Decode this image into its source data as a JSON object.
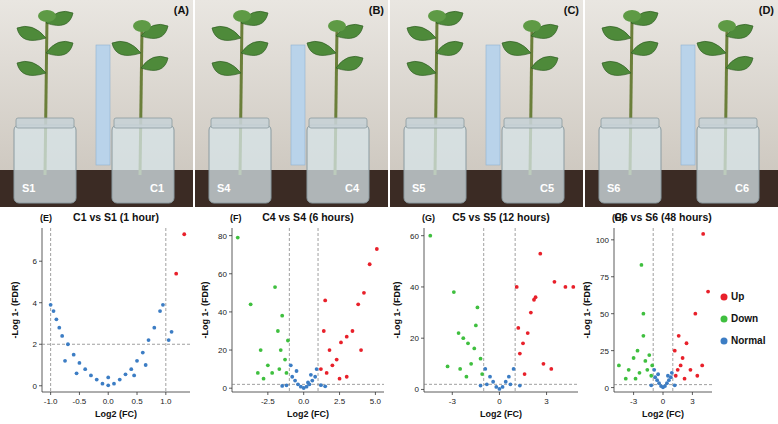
{
  "photos": [
    {
      "label": "(A)",
      "left": "S1",
      "right": "C1"
    },
    {
      "label": "(B)",
      "left": "S4",
      "right": "C4"
    },
    {
      "label": "(C)",
      "left": "S5",
      "right": "C5"
    },
    {
      "label": "(D)",
      "left": "S6",
      "right": "C6"
    }
  ],
  "chart_data": [
    {
      "type": "scatter",
      "title": "C1 vs S1 (1 hour)",
      "panel": "(E)",
      "xlabel": "Log2 (FC)",
      "ylabel": "-Log 1- (FDR)",
      "xlim": [
        -1.15,
        1.42
      ],
      "ylim": [
        -0.3,
        7.6
      ],
      "xticks": [
        {
          "value": -1,
          "label": "-1.0"
        },
        -0.5,
        {
          "value": 0,
          "label": "0.0"
        },
        0.5,
        {
          "value": 1,
          "label": "1.0"
        }
      ],
      "yticks": [
        0,
        2,
        4,
        6
      ],
      "reference_lines": {
        "x": [
          -1,
          1
        ],
        "y": 2
      },
      "series": [
        {
          "color": "#e8202a",
          "x": [
            1.32,
            1.18
          ],
          "values": [
            7.3,
            5.4
          ]
        },
        {
          "color": "#3fbf3f",
          "x": [],
          "values": []
        },
        {
          "color": "#3c7dc4",
          "x": [
            -1.0,
            -0.95,
            -0.9,
            -0.85,
            -0.8,
            -0.7,
            -0.6,
            -0.5,
            -0.4,
            -0.3,
            -0.2,
            -0.1,
            0,
            0.1,
            0.2,
            0.3,
            0.4,
            0.5,
            0.6,
            0.7,
            0.8,
            0.9,
            0.95,
            1.05,
            1.1,
            -0.55,
            0.45,
            -0.75,
            0.65,
            0.0
          ],
          "values": [
            3.9,
            3.6,
            3.2,
            2.8,
            2.4,
            2.0,
            1.5,
            1.1,
            0.8,
            0.5,
            0.3,
            0.1,
            0.02,
            0.1,
            0.3,
            0.55,
            0.8,
            1.2,
            1.6,
            2.2,
            2.8,
            3.6,
            3.9,
            2.2,
            2.6,
            0.6,
            0.5,
            1.2,
            1.0,
            0.4
          ]
        }
      ]
    },
    {
      "type": "scatter",
      "title": "C4 vs S4 (6 hours)",
      "panel": "(F)",
      "xlabel": "Log2 (FC)",
      "ylabel": "-Log 1- (FDR)",
      "xlim": [
        -5,
        5.6
      ],
      "ylim": [
        -2,
        84
      ],
      "xticks": [
        -2.5,
        {
          "value": 0,
          "label": "0.0"
        },
        2.5,
        {
          "value": 5,
          "label": "5.0"
        }
      ],
      "yticks": [
        0,
        20,
        40,
        60,
        80
      ],
      "reference_lines": {
        "x": [
          -1,
          1
        ],
        "y": 2
      },
      "series": [
        {
          "color": "#e8202a",
          "x": [
            5.1,
            4.6,
            4.2,
            3.8,
            3.4,
            3.0,
            2.6,
            2.3,
            2.0,
            1.8,
            1.6,
            1.4,
            1.2,
            3.0,
            2.5,
            4.0,
            1.5
          ],
          "values": [
            73,
            65,
            50,
            44,
            30,
            27,
            24,
            15,
            12,
            20,
            8,
            30,
            10,
            6,
            5,
            20,
            46
          ]
        },
        {
          "color": "#3fbf3f",
          "x": [
            -4.6,
            -3.7,
            -3.0,
            -2.5,
            -2.0,
            -1.8,
            -1.6,
            -1.5,
            -1.3,
            -1.2,
            -2.2,
            -3.2,
            -1.1,
            -1.7,
            -2.8
          ],
          "values": [
            79,
            44,
            20,
            12,
            53,
            30,
            20,
            38,
            15,
            8,
            8,
            8,
            25,
            10,
            5
          ]
        },
        {
          "color": "#3c7dc4",
          "x": [
            -1.2,
            -0.8,
            -0.6,
            -0.4,
            -0.2,
            0,
            0.2,
            0.4,
            0.6,
            0.8,
            1.2,
            1.5,
            -1.5,
            -0.9,
            0.9,
            -0.5,
            0.5,
            0.3
          ],
          "values": [
            1.5,
            6,
            4,
            2,
            0.8,
            0.1,
            0.8,
            2,
            4,
            6,
            1.6,
            1.0,
            1.2,
            12,
            10,
            9,
            7,
            3
          ]
        }
      ]
    },
    {
      "type": "scatter",
      "title": "C5 vs S5 (12 hours)",
      "panel": "(G)",
      "xlabel": "Log2 (FC)",
      "ylabel": "-Log 1- (FDR)",
      "xlim": [
        -4.8,
        5
      ],
      "ylim": [
        -1,
        63
      ],
      "xticks": [
        -3,
        0,
        3
      ],
      "yticks": [
        0,
        20,
        40,
        60
      ],
      "reference_lines": {
        "x": [
          -1,
          1
        ],
        "y": 2
      },
      "series": [
        {
          "color": "#e8202a",
          "x": [
            4.7,
            4.2,
            3.5,
            2.6,
            2.3,
            2.0,
            1.8,
            1.5,
            1.3,
            1.2,
            2.8,
            3.3,
            1.6,
            2.2,
            1.1
          ],
          "values": [
            40,
            40,
            42,
            53,
            36,
            30,
            22,
            18,
            14,
            24,
            10,
            8,
            6,
            35,
            40
          ]
        },
        {
          "color": "#3fbf3f",
          "x": [
            -4.4,
            -2.9,
            -2.6,
            -2.3,
            -2.0,
            -1.6,
            -1.4,
            -1.2,
            -1.8,
            -2.5,
            -3.3,
            -1.1,
            -1.5,
            -2.1
          ],
          "values": [
            60,
            38,
            22,
            20,
            18,
            16,
            32,
            12,
            10,
            8,
            9,
            6,
            25,
            5
          ]
        },
        {
          "color": "#3c7dc4",
          "x": [
            -0.9,
            -0.6,
            -0.4,
            -0.2,
            0,
            0.2,
            0.4,
            0.6,
            0.9,
            -1.2,
            1.3,
            -0.8,
            0.7
          ],
          "values": [
            8,
            5,
            3,
            1,
            0.2,
            1,
            3,
            5,
            8,
            1.5,
            1.5,
            2,
            2
          ]
        }
      ]
    },
    {
      "type": "scatter",
      "title": "C6 vs S6 (48 hours)",
      "panel": "(H)",
      "xlabel": "Log2 (FC)",
      "ylabel": "-Log 1- (FDR)",
      "xlim": [
        -5,
        5
      ],
      "ylim": [
        -3,
        108
      ],
      "xticks": [
        -3,
        0,
        3
      ],
      "yticks": [
        0,
        25,
        50,
        75,
        100
      ],
      "reference_lines": {
        "x": [
          -1,
          1
        ],
        "y": 2
      },
      "legend": "right",
      "series": [
        {
          "name": "Up",
          "color": "#e8202a",
          "x": [
            4.1,
            4.6,
            3.3,
            2.4,
            2.0,
            1.8,
            1.5,
            1.3,
            2.8,
            3.5,
            1.2,
            2.2,
            4.0,
            1.6
          ],
          "values": [
            104,
            65,
            50,
            30,
            20,
            15,
            12,
            8,
            12,
            8,
            25,
            6,
            15,
            35
          ]
        },
        {
          "name": "Down",
          "color": "#3fbf3f",
          "x": [
            -2.2,
            -4.5,
            -3.5,
            -3.0,
            -2.6,
            -2.4,
            -2.0,
            -1.8,
            -1.6,
            -1.4,
            -1.2,
            -3.8,
            -2.8,
            -1.1,
            -2.0
          ],
          "values": [
            83,
            15,
            12,
            20,
            25,
            10,
            35,
            18,
            12,
            22,
            8,
            6,
            6,
            15,
            50
          ]
        },
        {
          "name": "Normal",
          "color": "#3c7dc4",
          "x": [
            -1.2,
            -0.8,
            -0.6,
            -0.4,
            -0.2,
            0,
            0.2,
            0.4,
            0.6,
            0.8,
            1.2,
            -0.9,
            0.9,
            -0.5,
            0.5
          ],
          "values": [
            1.5,
            7,
            5,
            3,
            1,
            0.2,
            1,
            3,
            5,
            7,
            1.5,
            12,
            10,
            9,
            8
          ]
        }
      ]
    }
  ]
}
